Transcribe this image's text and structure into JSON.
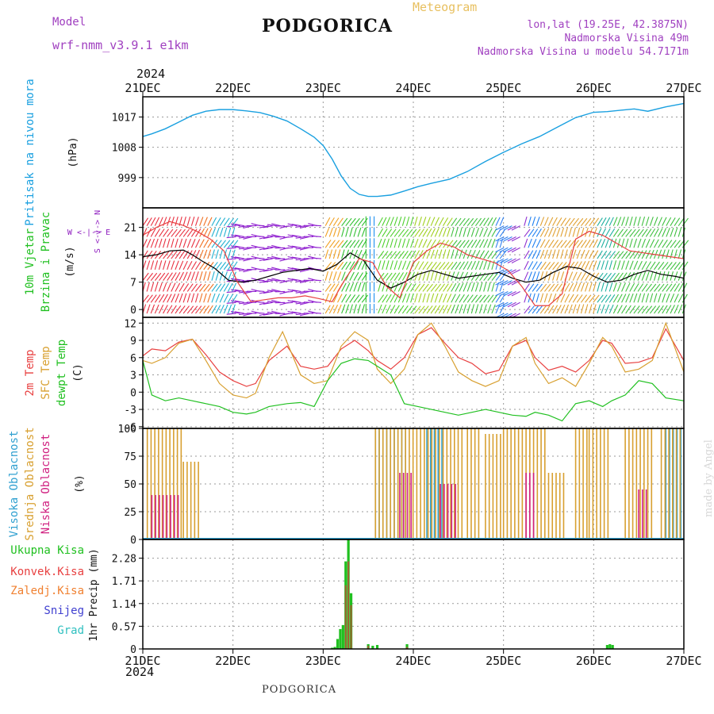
{
  "header": {
    "model_label": "Model",
    "model_name": "wrf-nmm_v3.9.1  e1km",
    "title": "PODGORICA",
    "meteogram_label": "Meteogram",
    "lonlat": "lon,lat (19.25E, 42.3875N)",
    "elevation": "Nadmorska Visina 49m",
    "model_elevation": "Nadmorska Visina u modelu 54.7171m",
    "year_top": "2024",
    "year_bottom": "2024",
    "footer_title": "PODGORICA",
    "watermark": "made by Angel"
  },
  "colors": {
    "pressure": "#1aa0e0",
    "temp2m": "#e84040",
    "sfc": "#d8a030",
    "dewpt": "#20c020",
    "high_cloud": "#30a0d0",
    "mid_cloud": "#d8a030",
    "low_cloud": "#d02080",
    "total_precip": "#20c020",
    "conv_precip": "#e84040",
    "frozen_precip": "#f08030",
    "snow": "#4040d0",
    "hail": "#30c0c0",
    "wind_label": "#20c020",
    "wind_units": "#9020c0"
  },
  "chart_data": [
    {
      "type": "line",
      "panel": "pressure",
      "ylabel_lines": [
        "Pritisak na nivou mora"
      ],
      "units": "(hPa)",
      "x_ticks": [
        "21DEC",
        "22DEC",
        "23DEC",
        "24DEC",
        "25DEC",
        "26DEC",
        "27DEC"
      ],
      "ylim": [
        990,
        1023
      ],
      "y_ticks": [
        999,
        1008,
        1017
      ],
      "series": [
        {
          "color_key": "pressure",
          "x_days": [
            0,
            0.1,
            0.25,
            0.4,
            0.55,
            0.7,
            0.85,
            1.0,
            1.15,
            1.3,
            1.45,
            1.6,
            1.75,
            1.9,
            2.0,
            2.1,
            2.2,
            2.3,
            2.4,
            2.5,
            2.6,
            2.75,
            2.9,
            3.05,
            3.2,
            3.4,
            3.6,
            3.8,
            4.0,
            4.2,
            4.4,
            4.6,
            4.8,
            5.0,
            5.15,
            5.3,
            5.45,
            5.6,
            5.8,
            6.0
          ],
          "values": [
            1011.2,
            1012,
            1013.5,
            1015.5,
            1017.5,
            1018.7,
            1019.2,
            1019.2,
            1018.8,
            1018.3,
            1017.2,
            1015.8,
            1013.5,
            1011.0,
            1008.5,
            1004.5,
            999.5,
            995.8,
            994.0,
            993.4,
            993.4,
            993.8,
            995.0,
            996.3,
            997.3,
            998.5,
            1000.8,
            1003.8,
            1006.5,
            1009.0,
            1011.2,
            1014.0,
            1016.8,
            1018.4,
            1018.6,
            1019.0,
            1019.4,
            1018.7,
            1020.0,
            1021.0
          ]
        }
      ]
    },
    {
      "type": "line",
      "panel": "wind",
      "ylabel_lines": [
        "10m Vjetar",
        "Brzina i Pravac"
      ],
      "units": "(m/s)",
      "ylim": [
        -2,
        26
      ],
      "y_ticks": [
        0,
        7,
        14,
        21
      ],
      "series": [
        {
          "name": "wind_speed",
          "color": "#000000",
          "x_days": [
            0,
            0.15,
            0.3,
            0.45,
            0.55,
            0.65,
            0.8,
            0.95,
            1.1,
            1.25,
            1.4,
            1.55,
            1.7,
            1.85,
            2.0,
            2.15,
            2.3,
            2.45,
            2.6,
            2.75,
            2.9,
            3.05,
            3.2,
            3.35,
            3.5,
            3.65,
            3.8,
            3.95,
            4.1,
            4.25,
            4.4,
            4.55,
            4.7,
            4.85,
            5.0,
            5.15,
            5.3,
            5.45,
            5.6,
            5.75,
            5.9,
            6.0
          ],
          "values": [
            13.5,
            14,
            15,
            15.2,
            14.0,
            12.5,
            10.5,
            7.5,
            7.0,
            7.5,
            8.5,
            9.5,
            10.0,
            10.5,
            9.8,
            11.5,
            14.5,
            12.5,
            7.5,
            5.5,
            7.0,
            9.0,
            10.0,
            9.0,
            8.0,
            8.5,
            9.0,
            9.5,
            8.0,
            7.0,
            7.5,
            9.5,
            11.0,
            10.5,
            8.5,
            7.0,
            7.5,
            9.0,
            10.0,
            9.0,
            8.5,
            8.0
          ]
        },
        {
          "name": "wind_gust",
          "color": "#e84040",
          "x_days": [
            0,
            0.15,
            0.3,
            0.45,
            0.6,
            0.75,
            0.9,
            1.05,
            1.2,
            1.35,
            1.5,
            1.65,
            1.8,
            1.95,
            2.1,
            2.25,
            2.4,
            2.55,
            2.7,
            2.85,
            3.0,
            3.15,
            3.3,
            3.45,
            3.6,
            3.75,
            3.9,
            4.05,
            4.2,
            4.35,
            4.5,
            4.65,
            4.8,
            4.95,
            5.1,
            5.25,
            5.4,
            5.55,
            5.7,
            5.85,
            6.0
          ],
          "values": [
            19,
            21,
            22.5,
            21.5,
            20,
            18,
            15,
            7,
            2,
            2.5,
            3,
            3,
            3.5,
            2.8,
            2,
            8,
            13,
            12,
            6,
            3,
            12,
            15,
            17,
            16,
            14,
            13,
            12,
            10,
            6,
            1,
            1,
            4,
            18,
            20,
            19,
            17,
            15,
            14.5,
            14,
            13.5,
            13
          ]
        }
      ],
      "legend_arrows": [
        "W <-|-> E",
        "S <-|-> N"
      ]
    },
    {
      "type": "line",
      "panel": "temperature",
      "ylabel_lines": [
        "2m Temp",
        "SFC Temp",
        "dewpt Temp"
      ],
      "units": "(C)",
      "ylim": [
        -6.3,
        13
      ],
      "y_ticks": [
        -6,
        -3,
        0,
        3,
        6,
        9,
        12
      ],
      "series": [
        {
          "name": "2m Temp",
          "color_key": "temp2m",
          "x_days": [
            0,
            0.1,
            0.25,
            0.4,
            0.55,
            0.7,
            0.85,
            1.0,
            1.15,
            1.25,
            1.4,
            1.6,
            1.75,
            1.9,
            2.05,
            2.2,
            2.35,
            2.5,
            2.6,
            2.75,
            2.9,
            3.05,
            3.2,
            3.35,
            3.5,
            3.65,
            3.8,
            3.95,
            4.1,
            4.25,
            4.35,
            4.5,
            4.65,
            4.8,
            4.95,
            5.1,
            5.2,
            5.35,
            5.5,
            5.65,
            5.8,
            6.0
          ],
          "values": [
            6.3,
            7.5,
            7.2,
            8.7,
            9.2,
            6.5,
            3.5,
            2.0,
            1.0,
            1.5,
            5.5,
            8.0,
            4.5,
            4.0,
            4.5,
            7.5,
            9.0,
            7.2,
            5.5,
            4.0,
            6.0,
            10.0,
            11.2,
            8.5,
            6.0,
            5.0,
            3.2,
            3.8,
            8.0,
            9.0,
            6.0,
            3.8,
            4.5,
            3.5,
            5.5,
            9.0,
            8.5,
            5.0,
            5.2,
            6.0,
            11.0,
            5.5
          ]
        },
        {
          "name": "SFC Temp",
          "color_key": "sfc",
          "x_days": [
            0,
            0.1,
            0.25,
            0.4,
            0.55,
            0.7,
            0.85,
            1.0,
            1.15,
            1.25,
            1.4,
            1.55,
            1.75,
            1.9,
            2.05,
            2.2,
            2.35,
            2.5,
            2.6,
            2.75,
            2.9,
            3.05,
            3.2,
            3.35,
            3.5,
            3.65,
            3.8,
            3.95,
            4.1,
            4.25,
            4.35,
            4.5,
            4.65,
            4.8,
            4.95,
            5.1,
            5.2,
            5.35,
            5.5,
            5.65,
            5.8,
            6.0
          ],
          "values": [
            5.5,
            5.0,
            6.0,
            8.5,
            9.2,
            5.5,
            1.5,
            -0.5,
            -1.0,
            -0.2,
            6.0,
            10.5,
            3.0,
            1.5,
            2.0,
            8.0,
            10.5,
            9.0,
            4.0,
            1.5,
            4.0,
            10.0,
            12.0,
            8.0,
            3.5,
            2.0,
            1.0,
            2.0,
            8.0,
            9.5,
            5.0,
            1.5,
            2.5,
            1.0,
            5.0,
            9.5,
            8.0,
            3.5,
            4.0,
            5.5,
            12.0,
            3.5
          ]
        },
        {
          "name": "dewpt Temp",
          "color_key": "dewpt",
          "x_days": [
            0,
            0.1,
            0.25,
            0.4,
            0.55,
            0.7,
            0.85,
            1.0,
            1.15,
            1.25,
            1.4,
            1.6,
            1.75,
            1.9,
            2.05,
            2.2,
            2.35,
            2.5,
            2.6,
            2.75,
            2.9,
            3.05,
            3.2,
            3.35,
            3.5,
            3.65,
            3.8,
            3.95,
            4.1,
            4.25,
            4.35,
            4.5,
            4.65,
            4.8,
            4.95,
            5.1,
            5.2,
            5.35,
            5.5,
            5.65,
            5.8,
            6.0
          ],
          "values": [
            5.5,
            -0.5,
            -1.5,
            -1.0,
            -1.5,
            -2.0,
            -2.5,
            -3.5,
            -3.8,
            -3.5,
            -2.5,
            -2.0,
            -1.8,
            -2.5,
            2.0,
            5.0,
            5.8,
            5.5,
            4.5,
            3.0,
            -2.0,
            -2.5,
            -3.0,
            -3.5,
            -4.0,
            -3.5,
            -3.0,
            -3.5,
            -4.0,
            -4.2,
            -3.5,
            -4.0,
            -5.0,
            -2.0,
            -1.5,
            -2.5,
            -1.5,
            -0.5,
            2.0,
            1.5,
            -1.0,
            -1.5
          ]
        }
      ]
    },
    {
      "type": "bar",
      "panel": "cloud",
      "ylabel_lines": [
        "Visoka Oblacnost",
        "Srednja Oblacnost",
        "Niska Oblacnost"
      ],
      "units": "(%)",
      "ylim": [
        0,
        100
      ],
      "y_ticks": [
        0,
        25,
        50,
        75,
        100
      ],
      "series": [
        {
          "name": "Visoka Oblacnost",
          "color_key": "high_cloud",
          "ranges": [
            [
              2.58,
              2.95,
              100
            ],
            [
              3.15,
              3.35,
              100
            ],
            [
              5.8,
              6.0,
              100
            ]
          ]
        },
        {
          "name": "Srednja Oblacnost",
          "color_key": "mid_cloud",
          "ranges": [
            [
              0.05,
              0.45,
              100
            ],
            [
              0.45,
              0.65,
              70
            ],
            [
              2.58,
              3.55,
              100
            ],
            [
              3.6,
              3.75,
              100
            ],
            [
              3.8,
              4.0,
              95
            ],
            [
              4.0,
              4.5,
              100
            ],
            [
              4.5,
              4.7,
              60
            ],
            [
              4.8,
              4.95,
              100
            ],
            [
              4.95,
              5.2,
              100
            ],
            [
              5.35,
              5.65,
              100
            ],
            [
              5.75,
              6.0,
              100
            ]
          ]
        },
        {
          "name": "Niska Oblacnost",
          "color_key": "low_cloud",
          "ranges": [
            [
              0.1,
              0.4,
              40
            ],
            [
              2.85,
              3.0,
              60
            ],
            [
              3.3,
              3.5,
              50
            ],
            [
              4.25,
              4.35,
              60
            ],
            [
              5.5,
              5.6,
              45
            ]
          ]
        }
      ]
    },
    {
      "type": "bar",
      "panel": "precip",
      "legend": [
        "Ukupna  Kisa",
        "Konvek.Kisa",
        "Zaledj.Kisa",
        "Snijeg",
        "Grad"
      ],
      "ylabel": "1hr Precip (mm)",
      "ylim": [
        0,
        2.75
      ],
      "y_ticks": [
        0,
        0.57,
        1.14,
        1.71,
        2.28
      ],
      "total": [
        [
          2.1,
          0.03
        ],
        [
          2.13,
          0.05
        ],
        [
          2.16,
          0.25
        ],
        [
          2.19,
          0.5
        ],
        [
          2.22,
          0.6
        ],
        [
          2.25,
          2.2
        ],
        [
          2.28,
          2.75
        ],
        [
          2.31,
          1.4
        ],
        [
          2.5,
          0.12
        ],
        [
          2.55,
          0.08
        ],
        [
          2.6,
          0.1
        ],
        [
          2.93,
          0.12
        ],
        [
          5.15,
          0.1
        ],
        [
          5.18,
          0.12
        ],
        [
          5.21,
          0.1
        ]
      ],
      "convective": [
        [
          2.25,
          1.6
        ],
        [
          2.28,
          2.2
        ],
        [
          2.31,
          1.1
        ],
        [
          2.5,
          0.08
        ],
        [
          2.93,
          0.05
        ]
      ]
    }
  ]
}
